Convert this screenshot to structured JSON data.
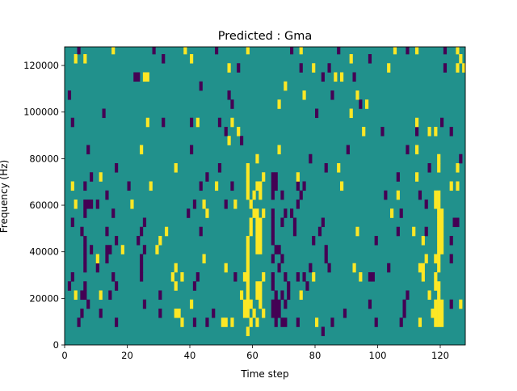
{
  "chart_data": {
    "type": "heatmap",
    "title": "Predicted : Gma",
    "xlabel": "Time step",
    "ylabel": "Frequency (Hz)",
    "xlim": [
      0,
      128
    ],
    "ylim": [
      0,
      128000
    ],
    "xticks": [
      "0",
      "20",
      "40",
      "60",
      "80",
      "100",
      "120"
    ],
    "xtick_values": [
      0,
      20,
      40,
      60,
      80,
      100,
      120
    ],
    "yticks": [
      "0",
      "20000",
      "40000",
      "60000",
      "80000",
      "100000",
      "120000"
    ],
    "ytick_values": [
      0,
      20000,
      40000,
      60000,
      80000,
      100000,
      120000
    ],
    "n_time_steps": 128,
    "n_freq_bins": 33,
    "colormap": {
      "background": "#21918c",
      "low": "#440154",
      "high": "#fde725"
    },
    "note_rows_bottom_to_top": [
      {
        "purple": [],
        "yellow": []
      },
      {
        "purple": [
          82
        ],
        "yellow": [
          58
        ]
      },
      {
        "purple": [
          4,
          16,
          41,
          45,
          67,
          69,
          70,
          74,
          85,
          99,
          107
        ],
        "yellow": [
          37,
          50,
          51,
          53,
          59,
          61,
          80,
          113,
          118,
          119,
          120
        ]
      },
      {
        "purple": [
          5,
          11,
          30,
          47,
          66,
          67,
          68,
          89,
          108
        ],
        "yellow": [
          35,
          36,
          57,
          58,
          60,
          63,
          117,
          118,
          119,
          120
        ]
      },
      {
        "purple": [
          7,
          25,
          66,
          67,
          68,
          70,
          97,
          108,
          123
        ],
        "yellow": [
          40,
          57,
          58,
          59,
          62,
          118,
          119,
          120,
          126
        ]
      },
      {
        "purple": [
          5,
          6,
          14,
          30,
          67,
          69,
          71,
          109
        ],
        "yellow": [
          3,
          11,
          56,
          58,
          61,
          62,
          75,
          116,
          119
        ]
      },
      {
        "purple": [
          1,
          6,
          16,
          41,
          66,
          71,
          77
        ],
        "yellow": [
          35,
          58,
          61,
          62,
          118,
          119
        ]
      },
      {
        "purple": [
          2,
          15,
          24,
          42,
          54,
          66,
          70,
          74,
          76,
          97,
          98
        ],
        "yellow": [
          34,
          37,
          57,
          58,
          63,
          79,
          94,
          114,
          118
        ]
      },
      {
        "purple": [
          6,
          10,
          24,
          68,
          78,
          84,
          103
        ],
        "yellow": [
          35,
          51,
          58,
          92,
          113,
          114,
          119
        ]
      },
      {
        "purple": [
          6,
          13,
          24,
          66,
          69,
          83,
          123
        ],
        "yellow": [
          10,
          44,
          58,
          115,
          118,
          119
        ]
      },
      {
        "purple": [
          6,
          8,
          13,
          14,
          25,
          67,
          68,
          83
        ],
        "yellow": [
          18,
          29,
          58,
          61,
          62,
          119,
          120
        ]
      },
      {
        "purple": [
          6,
          16,
          23,
          66,
          79,
          99,
          123
        ],
        "yellow": [
          30,
          58,
          61,
          62,
          114,
          119,
          120
        ]
      },
      {
        "purple": [
          5,
          13,
          24,
          43,
          66,
          73,
          81,
          106,
          115
        ],
        "yellow": [
          32,
          59,
          61,
          62,
          93,
          111,
          119,
          120
        ]
      },
      {
        "purple": [
          2,
          25,
          66,
          69,
          73,
          82,
          124,
          125
        ],
        "yellow": [
          59,
          61,
          62,
          119,
          120
        ]
      },
      {
        "purple": [
          6,
          15,
          39,
          66,
          70,
          72,
          107
        ],
        "yellow": [
          45,
          60,
          61,
          63,
          104,
          119,
          120
        ]
      },
      {
        "purple": [
          6,
          7,
          8,
          10,
          41,
          51,
          74,
          115
        ],
        "yellow": [
          3,
          21,
          44,
          54,
          59,
          118,
          119
        ]
      },
      {
        "purple": [
          13,
          66,
          69,
          75,
          102,
          113
        ],
        "yellow": [
          58,
          60,
          62,
          106,
          118,
          119
        ]
      },
      {
        "purple": [
          6,
          20,
          43,
          53,
          66,
          67,
          74,
          76
        ],
        "yellow": [
          2,
          27,
          48,
          58,
          61,
          62,
          88,
          123,
          125
        ]
      },
      {
        "purple": [
          8,
          45,
          66,
          67,
          106
        ],
        "yellow": [
          11,
          58,
          63,
          74,
          112
        ]
      },
      {
        "purple": [
          16,
          49,
          83,
          116
        ],
        "yellow": [
          35,
          58,
          87,
          119,
          125
        ]
      },
      {
        "purple": [
          78,
          126
        ],
        "yellow": [
          61,
          119
        ]
      },
      {
        "purple": [
          7,
          40,
          90,
          109
        ],
        "yellow": [
          24,
          68,
          112
        ]
      },
      {
        "purple": [
          56
        ],
        "yellow": [
          52
        ]
      },
      {
        "purple": [
          51,
          101,
          112,
          123
        ],
        "yellow": [
          55,
          95,
          116,
          118
        ]
      },
      {
        "purple": [
          2,
          31,
          40,
          49,
          120
        ],
        "yellow": [
          26,
          42,
          53,
          112
        ]
      },
      {
        "purple": [
          12,
          80
        ],
        "yellow": [
          91
        ]
      },
      {
        "purple": [
          53,
          94
        ],
        "yellow": [
          68,
          96
        ]
      },
      {
        "purple": [
          1,
          52,
          85
        ],
        "yellow": [
          76,
          93
        ]
      },
      {
        "purple": [
          43
        ],
        "yellow": [
          70
        ]
      },
      {
        "purple": [
          22,
          23,
          82,
          92
        ],
        "yellow": [
          25,
          26,
          86,
          88
        ]
      },
      {
        "purple": [
          55,
          75,
          84,
          121
        ],
        "yellow": [
          52,
          79,
          103,
          125,
          127
        ]
      },
      {
        "purple": [
          31,
          97
        ],
        "yellow": [
          3,
          6,
          40,
          91,
          126
        ]
      },
      {
        "purple": [
          4,
          28,
          48,
          72,
          87,
          109,
          121
        ],
        "yellow": [
          15,
          38,
          58,
          75,
          105,
          112,
          125
        ]
      }
    ]
  }
}
